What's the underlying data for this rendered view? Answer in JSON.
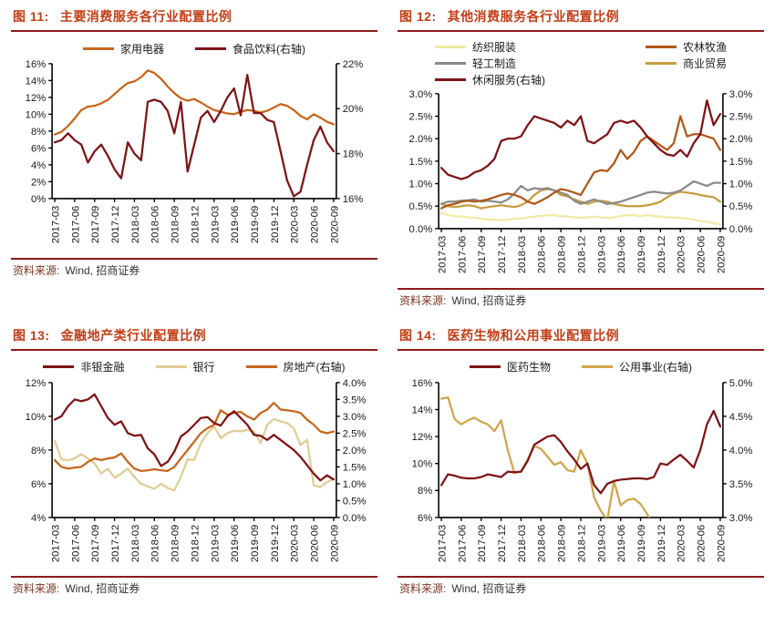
{
  "figures": [
    {
      "title_prefix": "图 11:",
      "title": "主要消费服务各行业配置比例",
      "source_label": "资料来源:",
      "source_value": "Wind, 招商证券",
      "chart_data": {
        "type": "line",
        "grid": false,
        "legend_position": "top",
        "legend_columns": 1,
        "x_tick_every": 3,
        "categories": [
          "2017-03",
          "2017-04",
          "2017-05",
          "2017-06",
          "2017-07",
          "2017-08",
          "2017-09",
          "2017-10",
          "2017-11",
          "2017-12",
          "2018-01",
          "2018-02",
          "2018-03",
          "2018-04",
          "2018-05",
          "2018-06",
          "2018-07",
          "2018-08",
          "2018-09",
          "2018-10",
          "2018-11",
          "2018-12",
          "2019-01",
          "2019-02",
          "2019-03",
          "2019-04",
          "2019-05",
          "2019-06",
          "2019-07",
          "2019-08",
          "2019-09",
          "2019-10",
          "2019-11",
          "2019-12",
          "2020-01",
          "2020-02",
          "2020-03",
          "2020-04",
          "2020-05",
          "2020-06",
          "2020-07",
          "2020-08",
          "2020-09"
        ],
        "left_axis": {
          "min": 0,
          "max": 16,
          "step": 2,
          "decimals": 0
        },
        "right_axis": {
          "min": 16,
          "max": 22,
          "step": 2,
          "decimals": 0
        },
        "series": [
          {
            "name": "家用电器",
            "axis": "left",
            "z": 1,
            "color": "#c8651d",
            "values": [
              7.6,
              7.9,
              8.6,
              9.5,
              10.5,
              10.9,
              11.0,
              11.3,
              11.7,
              12.4,
              13.1,
              13.7,
              13.9,
              14.4,
              15.2,
              14.9,
              14.2,
              13.3,
              12.5,
              11.9,
              11.6,
              11.8,
              11.4,
              10.9,
              10.5,
              10.3,
              10.1,
              10.0,
              10.3,
              10.5,
              10.4,
              10.2,
              10.4,
              10.8,
              11.2,
              11.0,
              10.5,
              9.8,
              9.4,
              10.0,
              9.6,
              9.1,
              8.8
            ]
          },
          {
            "name": "食品饮料(右轴)",
            "axis": "right",
            "z": 2,
            "color": "#7e1416",
            "values": [
              18.5,
              18.6,
              18.9,
              18.6,
              18.4,
              17.6,
              18.1,
              18.4,
              17.9,
              17.3,
              16.9,
              18.5,
              18.0,
              17.7,
              20.3,
              20.4,
              20.3,
              19.9,
              18.9,
              20.3,
              17.2,
              18.4,
              19.6,
              19.9,
              19.4,
              19.9,
              20.5,
              20.9,
              19.7,
              21.5,
              19.8,
              19.8,
              19.5,
              19.4,
              18.1,
              16.8,
              16.1,
              16.3,
              17.5,
              18.6,
              19.2,
              18.5,
              18.1
            ]
          }
        ]
      }
    },
    {
      "title_prefix": "图 12:",
      "title": "其他消费服务各行业配置比例",
      "source_label": "资料来源:",
      "source_value": "Wind, 招商证券",
      "chart_data": {
        "type": "line",
        "grid": false,
        "legend_position": "top",
        "legend_columns": 2,
        "x_tick_every": 3,
        "categories": [
          "2017-03",
          "2017-04",
          "2017-05",
          "2017-06",
          "2017-07",
          "2017-08",
          "2017-09",
          "2017-10",
          "2017-11",
          "2017-12",
          "2018-01",
          "2018-02",
          "2018-03",
          "2018-04",
          "2018-05",
          "2018-06",
          "2018-07",
          "2018-08",
          "2018-09",
          "2018-10",
          "2018-11",
          "2018-12",
          "2019-01",
          "2019-02",
          "2019-03",
          "2019-04",
          "2019-05",
          "2019-06",
          "2019-07",
          "2019-08",
          "2019-09",
          "2019-10",
          "2019-11",
          "2019-12",
          "2020-01",
          "2020-02",
          "2020-03",
          "2020-04",
          "2020-05",
          "2020-06",
          "2020-07",
          "2020-08",
          "2020-09"
        ],
        "left_axis": {
          "min": 0,
          "max": 3,
          "step": 0.5,
          "decimals": 1
        },
        "right_axis": {
          "min": 0,
          "max": 3,
          "step": 0.5,
          "decimals": 1
        },
        "series": [
          {
            "name": "纺织服装",
            "axis": "left",
            "z": 1,
            "color": "#f0eaa6",
            "values": [
              0.35,
              0.3,
              0.28,
              0.27,
              0.25,
              0.24,
              0.22,
              0.2,
              0.2,
              0.19,
              0.2,
              0.22,
              0.22,
              0.25,
              0.27,
              0.28,
              0.3,
              0.3,
              0.28,
              0.27,
              0.25,
              0.24,
              0.25,
              0.27,
              0.25,
              0.24,
              0.25,
              0.28,
              0.3,
              0.3,
              0.28,
              0.3,
              0.28,
              0.27,
              0.25,
              0.25,
              0.24,
              0.22,
              0.2,
              0.17,
              0.15,
              0.12,
              0.1
            ]
          },
          {
            "name": "农林牧渔",
            "axis": "left",
            "z": 4,
            "color": "#b05818",
            "values": [
              0.45,
              0.52,
              0.55,
              0.6,
              0.62,
              0.6,
              0.62,
              0.65,
              0.7,
              0.75,
              0.78,
              0.75,
              0.7,
              0.6,
              0.55,
              0.62,
              0.7,
              0.8,
              0.88,
              0.85,
              0.8,
              0.75,
              1.0,
              1.25,
              1.3,
              1.28,
              1.45,
              1.75,
              1.55,
              1.7,
              1.95,
              2.05,
              1.95,
              1.85,
              1.75,
              1.9,
              2.5,
              2.05,
              2.1,
              2.1,
              2.05,
              2.0,
              1.75
            ]
          },
          {
            "name": "轻工制造",
            "axis": "left",
            "z": 3,
            "color": "#8a8a8a",
            "values": [
              0.55,
              0.6,
              0.6,
              0.62,
              0.63,
              0.65,
              0.6,
              0.62,
              0.6,
              0.58,
              0.65,
              0.78,
              0.95,
              0.85,
              0.9,
              0.88,
              0.9,
              0.85,
              0.8,
              0.75,
              0.62,
              0.55,
              0.6,
              0.65,
              0.6,
              0.55,
              0.57,
              0.6,
              0.65,
              0.7,
              0.75,
              0.8,
              0.82,
              0.8,
              0.78,
              0.8,
              0.85,
              0.95,
              1.05,
              1.0,
              0.95,
              1.02,
              1.02
            ]
          },
          {
            "name": "商业贸易",
            "axis": "left",
            "z": 2,
            "color": "#c89b3f",
            "values": [
              0.55,
              0.5,
              0.48,
              0.5,
              0.52,
              0.5,
              0.45,
              0.48,
              0.5,
              0.52,
              0.5,
              0.48,
              0.52,
              0.6,
              0.75,
              0.85,
              0.88,
              0.85,
              0.75,
              0.72,
              0.65,
              0.6,
              0.55,
              0.6,
              0.62,
              0.6,
              0.55,
              0.52,
              0.5,
              0.5,
              0.5,
              0.52,
              0.55,
              0.6,
              0.7,
              0.78,
              0.82,
              0.8,
              0.78,
              0.75,
              0.72,
              0.7,
              0.6
            ]
          },
          {
            "name": "休闲服务(右轴)",
            "axis": "right",
            "z": 5,
            "color": "#7e1416",
            "values": [
              1.35,
              1.2,
              1.15,
              1.1,
              1.15,
              1.25,
              1.3,
              1.4,
              1.55,
              1.95,
              2.0,
              2.0,
              2.05,
              2.3,
              2.5,
              2.45,
              2.4,
              2.35,
              2.25,
              2.4,
              2.3,
              2.5,
              1.95,
              1.9,
              2.0,
              2.1,
              2.35,
              2.4,
              2.35,
              2.4,
              2.25,
              2.05,
              1.9,
              1.75,
              1.65,
              1.62,
              1.75,
              1.6,
              1.9,
              2.1,
              2.85,
              2.3,
              2.55
            ]
          }
        ]
      }
    },
    {
      "title_prefix": "图 13:",
      "title": "金融地产类行业配置比例",
      "source_label": "资料来源:",
      "source_value": "Wind, 招商证券",
      "chart_data": {
        "type": "line",
        "grid": false,
        "legend_position": "top",
        "legend_columns": 1,
        "x_tick_every": 3,
        "categories": [
          "2017-03",
          "2017-04",
          "2017-05",
          "2017-06",
          "2017-07",
          "2017-08",
          "2017-09",
          "2017-10",
          "2017-11",
          "2017-12",
          "2018-01",
          "2018-02",
          "2018-03",
          "2018-04",
          "2018-05",
          "2018-06",
          "2018-07",
          "2018-08",
          "2018-09",
          "2018-10",
          "2018-11",
          "2018-12",
          "2019-01",
          "2019-02",
          "2019-03",
          "2019-04",
          "2019-05",
          "2019-06",
          "2019-07",
          "2019-08",
          "2019-09",
          "2019-10",
          "2019-11",
          "2019-12",
          "2020-01",
          "2020-02",
          "2020-03",
          "2020-04",
          "2020-05",
          "2020-06",
          "2020-07",
          "2020-08",
          "2020-09"
        ],
        "left_axis": {
          "min": 4,
          "max": 12,
          "step": 2,
          "decimals": 0
        },
        "right_axis": {
          "min": 0,
          "max": 4,
          "step": 0.5,
          "decimals": 1
        },
        "series": [
          {
            "name": "非银金融",
            "axis": "left",
            "z": 3,
            "color": "#7e1416",
            "values": [
              9.8,
              10.0,
              10.6,
              11.0,
              10.9,
              11.0,
              11.3,
              10.6,
              9.9,
              9.5,
              9.7,
              9.0,
              8.85,
              8.9,
              8.1,
              7.75,
              7.05,
              7.3,
              7.9,
              8.8,
              9.1,
              9.5,
              9.9,
              9.95,
              9.6,
              9.45,
              10.0,
              10.3,
              9.9,
              9.5,
              8.9,
              8.85,
              8.6,
              8.9,
              8.6,
              8.3,
              8.0,
              7.6,
              7.1,
              6.6,
              6.2,
              6.5,
              6.25
            ]
          },
          {
            "name": "银行",
            "axis": "left",
            "z": 1,
            "color": "#e0cd96",
            "values": [
              8.55,
              7.45,
              7.4,
              7.5,
              7.75,
              7.5,
              7.2,
              6.6,
              6.9,
              6.35,
              6.6,
              6.9,
              6.4,
              6.0,
              5.85,
              5.7,
              6.0,
              5.75,
              5.6,
              6.4,
              7.45,
              7.4,
              8.4,
              9.0,
              9.4,
              8.7,
              9.0,
              9.15,
              9.1,
              9.2,
              9.1,
              8.4,
              9.5,
              9.85,
              9.7,
              9.6,
              9.3,
              8.3,
              8.6,
              5.9,
              5.8,
              6.1,
              6.3
            ]
          },
          {
            "name": "房地产(右轴)",
            "axis": "right",
            "z": 2,
            "color": "#c8651d",
            "values": [
              1.7,
              1.5,
              1.45,
              1.48,
              1.5,
              1.65,
              1.75,
              1.7,
              1.75,
              1.78,
              1.9,
              1.65,
              1.45,
              1.38,
              1.4,
              1.43,
              1.4,
              1.38,
              1.5,
              1.75,
              2.0,
              2.25,
              2.5,
              2.65,
              2.75,
              3.18,
              3.05,
              3.1,
              3.13,
              3.0,
              2.9,
              3.1,
              3.2,
              3.4,
              3.2,
              3.18,
              3.15,
              3.1,
              2.9,
              2.75,
              2.55,
              2.5,
              2.55
            ]
          }
        ]
      }
    },
    {
      "title_prefix": "图 14:",
      "title": "医药生物和公用事业配置比例",
      "source_label": "资料来源:",
      "source_value": "Wind, 招商证券",
      "chart_data": {
        "type": "line",
        "grid": false,
        "legend_position": "top",
        "legend_columns": 1,
        "x_tick_every": 3,
        "categories": [
          "2017-03",
          "2017-04",
          "2017-05",
          "2017-06",
          "2017-07",
          "2017-08",
          "2017-09",
          "2017-10",
          "2017-11",
          "2017-12",
          "2018-01",
          "2018-02",
          "2018-03",
          "2018-04",
          "2018-05",
          "2018-06",
          "2018-07",
          "2018-08",
          "2018-09",
          "2018-10",
          "2018-11",
          "2018-12",
          "2019-01",
          "2019-02",
          "2019-03",
          "2019-04",
          "2019-05",
          "2019-06",
          "2019-07",
          "2019-08",
          "2019-09",
          "2019-10",
          "2019-11",
          "2019-12",
          "2020-01",
          "2020-02",
          "2020-03",
          "2020-04",
          "2020-05",
          "2020-06",
          "2020-07",
          "2020-08",
          "2020-09"
        ],
        "left_axis": {
          "min": 6,
          "max": 16,
          "step": 2,
          "decimals": 0
        },
        "right_axis": {
          "min": 3,
          "max": 5,
          "step": 0.5,
          "decimals": 1
        },
        "series": [
          {
            "name": "医药生物",
            "axis": "left",
            "z": 2,
            "color": "#7e1416",
            "values": [
              8.4,
              9.2,
              9.1,
              8.95,
              8.9,
              8.9,
              9.0,
              9.2,
              9.1,
              9.0,
              9.4,
              9.35,
              9.4,
              10.2,
              11.4,
              11.7,
              12.0,
              12.1,
              11.6,
              10.9,
              10.3,
              9.6,
              10.0,
              8.4,
              7.8,
              8.5,
              8.7,
              8.8,
              8.85,
              8.9,
              8.9,
              8.85,
              9.0,
              10.0,
              9.9,
              10.3,
              10.65,
              10.2,
              9.7,
              11.0,
              12.9,
              13.9,
              12.75
            ]
          },
          {
            "name": "公用事业(右轴)",
            "axis": "right",
            "z": 1,
            "color": "#cfa64a",
            "values": [
              4.76,
              4.78,
              4.46,
              4.38,
              4.44,
              4.48,
              4.42,
              4.38,
              4.28,
              4.44,
              4.0,
              3.66,
              3.68,
              3.86,
              4.06,
              4.02,
              3.9,
              3.78,
              3.82,
              3.7,
              3.68,
              4.0,
              3.8,
              3.3,
              3.1,
              2.96,
              3.54,
              3.18,
              3.26,
              3.28,
              3.2,
              3.05,
              2.85,
              null,
              null,
              null,
              null,
              null,
              null,
              null,
              null,
              null,
              null
            ]
          }
        ]
      }
    }
  ]
}
